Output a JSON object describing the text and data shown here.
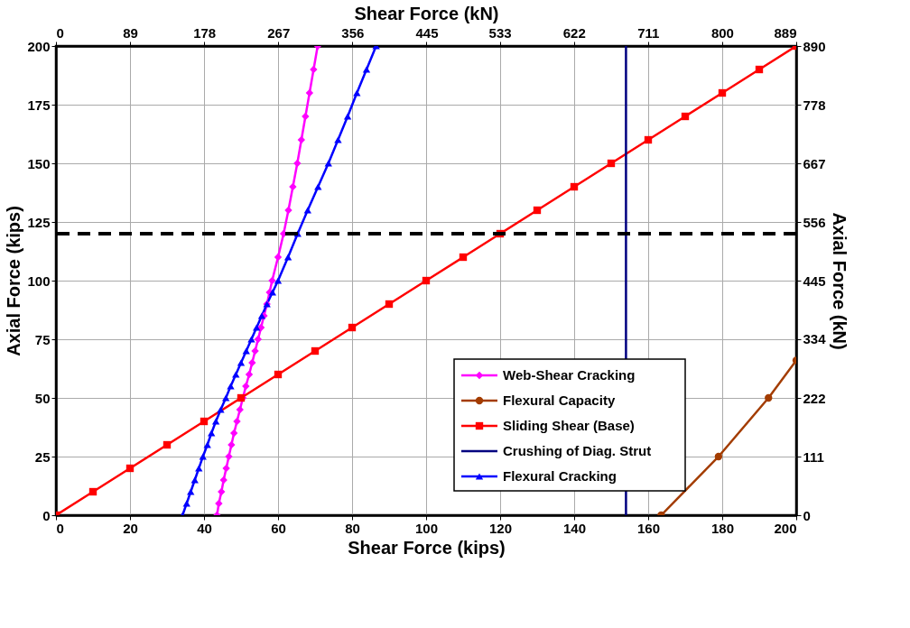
{
  "chart_data": {
    "type": "line",
    "xlabel": "Shear Force (kips)",
    "ylabel": "Axial Force (kips)",
    "x2label": "Shear Force (kN)",
    "y2label": "Axial Force (kN)",
    "xlim": [
      0,
      200
    ],
    "xticks": [
      0,
      20,
      40,
      60,
      80,
      100,
      120,
      140,
      160,
      180,
      200
    ],
    "ylim": [
      0,
      200
    ],
    "yticks": [
      0,
      25,
      50,
      75,
      100,
      125,
      150,
      175,
      200
    ],
    "x2lim": [
      0,
      889
    ],
    "x2ticks": [
      0,
      89,
      178,
      267,
      356,
      445,
      533,
      622,
      711,
      800,
      889
    ],
    "y2lim": [
      0,
      890
    ],
    "y2ticks": [
      0,
      111,
      222,
      334,
      445,
      556,
      667,
      778,
      890
    ],
    "grid": true,
    "legend": "bottom right",
    "series": [
      {
        "name": "Web-Shear Cracking",
        "color": "#ff00ff",
        "marker": "diamond",
        "x": [
          43.5,
          44,
          44.7,
          45.3,
          46,
          46.7,
          47.4,
          48.1,
          48.9,
          49.7,
          50.5,
          51.3,
          52.2,
          53,
          53.8,
          54.6,
          55.4,
          56.2,
          57,
          57.7,
          58.4,
          60,
          61.5,
          62.8,
          64,
          65.2,
          66.3,
          67.4,
          68.5,
          69.6,
          70.7
        ],
        "values": [
          0,
          5,
          10,
          15,
          20,
          25,
          30,
          35,
          40,
          45,
          50,
          55,
          60,
          65,
          70,
          75,
          80,
          85,
          90,
          95,
          100,
          110,
          120,
          130,
          140,
          150,
          160,
          170,
          180,
          190,
          200
        ]
      },
      {
        "name": "Flexural Capacity",
        "color": "#a33c00",
        "marker": "circle",
        "x": [
          163.5,
          179,
          192.5,
          200
        ],
        "values": [
          0,
          25,
          50,
          66
        ]
      },
      {
        "name": "Sliding Shear (Base)",
        "color": "#ff0000",
        "marker": "square",
        "x": [
          0,
          10,
          20,
          30,
          40,
          50,
          60,
          70,
          80,
          90,
          100,
          110,
          120,
          130,
          140,
          150,
          160,
          170,
          180,
          190,
          200
        ],
        "values": [
          0,
          10,
          20,
          30,
          40,
          50,
          60,
          70,
          80,
          90,
          100,
          110,
          120,
          130,
          140,
          150,
          160,
          170,
          180,
          190,
          200
        ]
      },
      {
        "name": "Crushing of Diag. Strut",
        "color": "#000080",
        "marker": "none",
        "x": [
          154,
          154
        ],
        "values": [
          0,
          200
        ]
      },
      {
        "name": "Flexural Cracking",
        "color": "#0000ff",
        "marker": "triangle",
        "x": [
          34.2,
          35.3,
          36.4,
          37.5,
          38.6,
          39.7,
          40.9,
          42,
          43.2,
          44.5,
          45.9,
          47.2,
          48.6,
          50,
          51.4,
          52.8,
          54.2,
          55.6,
          57,
          58.5,
          60,
          62.7,
          65.3,
          68,
          70.8,
          73.6,
          76.2,
          78.8,
          81.3,
          83.9,
          86.5
        ],
        "values": [
          0,
          5,
          10,
          15,
          20,
          25,
          30,
          35,
          40,
          45,
          50,
          55,
          60,
          65,
          70,
          75,
          80,
          85,
          90,
          95,
          100,
          110,
          120,
          130,
          140,
          150,
          160,
          170,
          180,
          190,
          200
        ]
      }
    ],
    "ref_lines": [
      {
        "axis": "y",
        "value": 120,
        "color": "#000000",
        "line_style": "dashed"
      }
    ]
  }
}
